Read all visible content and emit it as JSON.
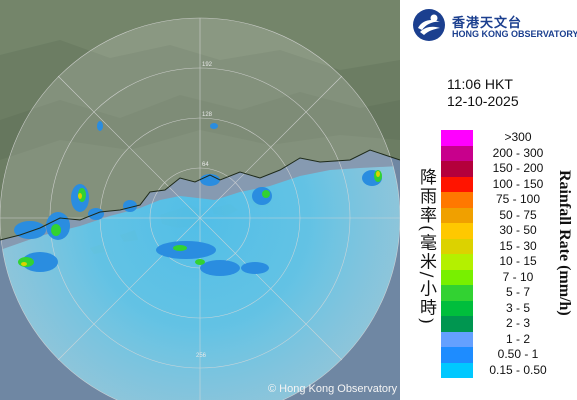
{
  "legend": {
    "logo_cn": "香港天文台",
    "logo_en": "HONG KONG OBSERVATORY",
    "logo_icon": "hko-logo-icon",
    "time": "11:06 HKT",
    "date": "12-10-2025",
    "unit_cn": "降雨率(毫米/小時)",
    "unit_en": "Rainfall Rate (mm/h)",
    "scale": [
      {
        "label": ">300",
        "color": "#ff00ff"
      },
      {
        "label": "200 - 300",
        "color": "#c8008c"
      },
      {
        "label": "150 - 200",
        "color": "#b4003c"
      },
      {
        "label": "100 - 150",
        "color": "#ff1400"
      },
      {
        "label": "75 - 100",
        "color": "#ff7800"
      },
      {
        "label": "50 - 75",
        "color": "#f0a000"
      },
      {
        "label": "30 - 50",
        "color": "#ffc800"
      },
      {
        "label": "15 - 30",
        "color": "#dcd200"
      },
      {
        "label": "10 - 15",
        "color": "#b4f000"
      },
      {
        "label": "7 - 10",
        "color": "#78f000"
      },
      {
        "label": "5 - 7",
        "color": "#32d232"
      },
      {
        "label": "3 - 5",
        "color": "#00be3c"
      },
      {
        "label": "2 - 3",
        "color": "#009650"
      },
      {
        "label": "1 - 2",
        "color": "#64a0ff"
      },
      {
        "label": "0.50 - 1",
        "color": "#1e8cff"
      },
      {
        "label": "0.15 - 0.50",
        "color": "#00c8ff"
      }
    ]
  },
  "map": {
    "copyright": "© Hong Kong Observatory",
    "range_labels": [
      "64",
      "128",
      "192",
      "256"
    ],
    "colors": {
      "land": "#6f7f67",
      "sea": "#6f87a3",
      "rain_light": "#5fc6e8",
      "rain_mid": "#2a8de0",
      "rain_heavy": "#3ed23a",
      "rain_peak": "#d8d400"
    }
  }
}
